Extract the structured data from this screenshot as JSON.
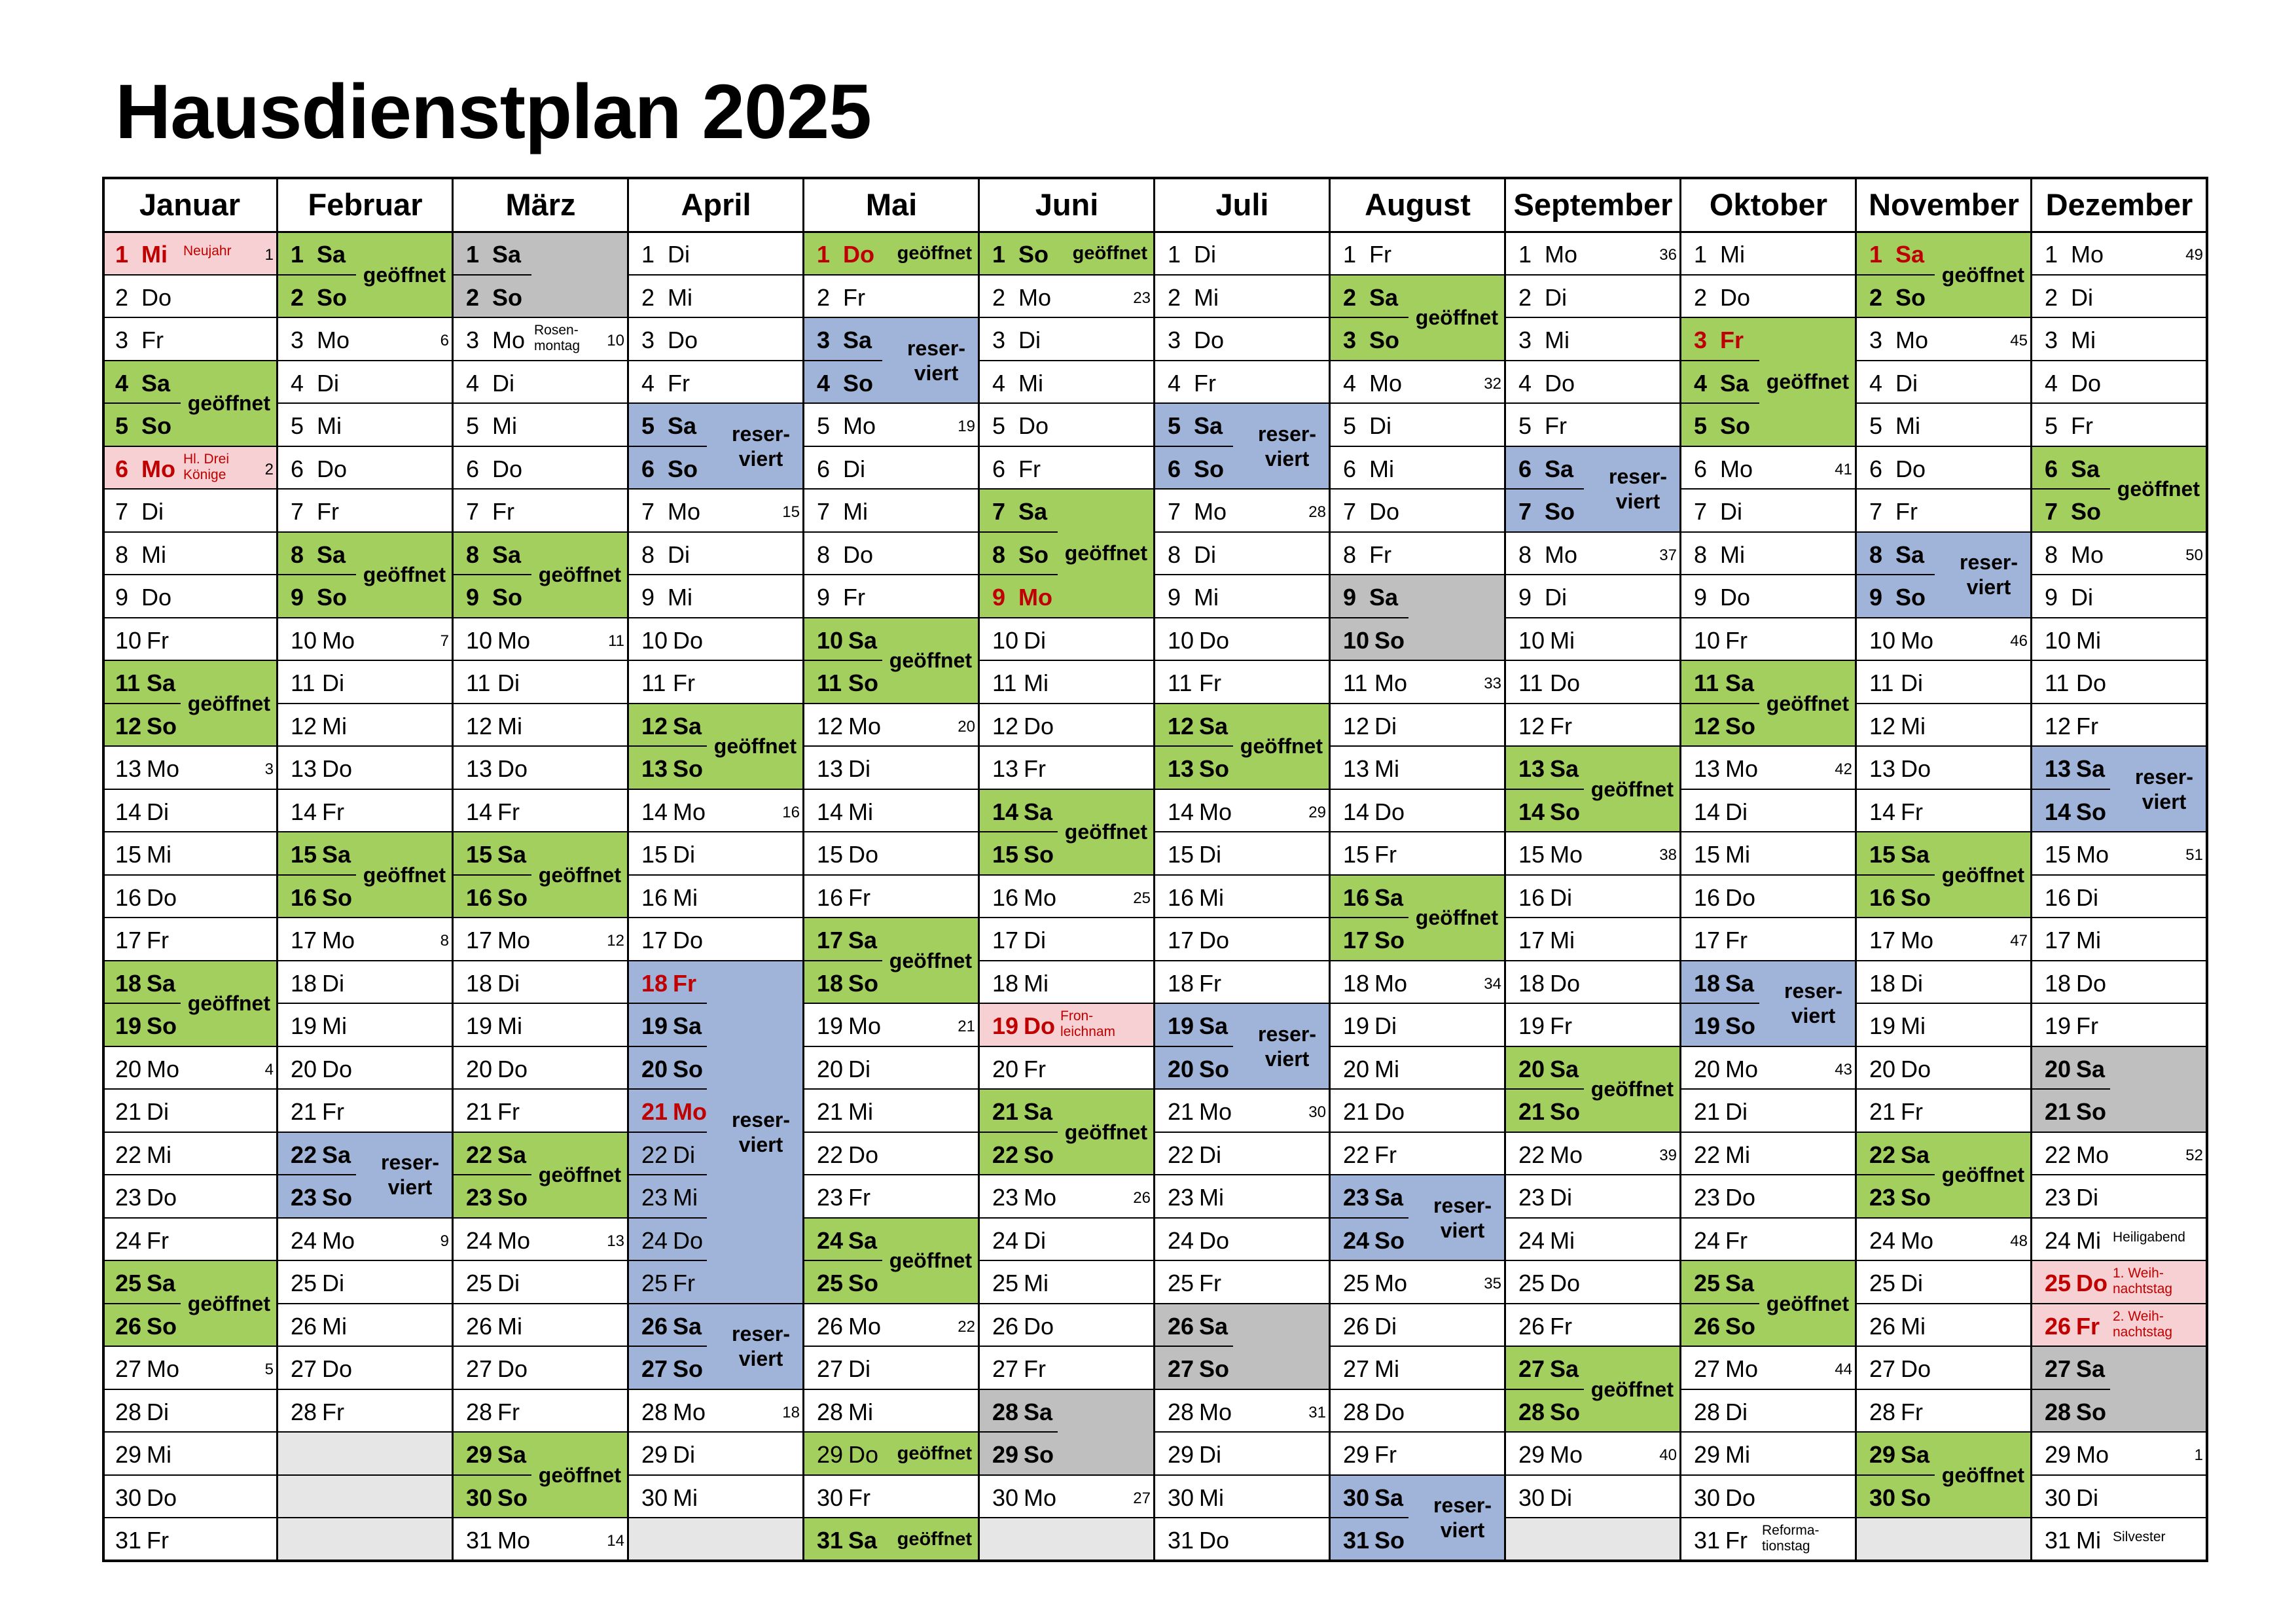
{
  "title": "Hausdienstplan 2025",
  "labels": {
    "open": "geöffnet",
    "reserved_1": "reser-",
    "reserved_2": "viert"
  },
  "colors": {
    "open": "#a3cf5e",
    "reserved": "#9fb4d8",
    "closed": "#bfbfbf",
    "holiday": "#f6d0d2",
    "empty": "#e6e6e6",
    "holiday_text": "#c00000"
  },
  "months": [
    {
      "name": "Januar",
      "first_weekday": 2,
      "days_in_month": 31,
      "weeks": {
        "13": "3",
        "20": "4",
        "27": "5",
        "6": "2",
        "1": "1"
      },
      "blocks": [
        [
          4,
          5,
          "open"
        ],
        [
          11,
          12,
          "open"
        ],
        [
          18,
          19,
          "open"
        ],
        [
          25,
          26,
          "open"
        ]
      ],
      "holidays": [
        {
          "day": 1,
          "note": "Neujahr"
        },
        {
          "day": 6,
          "note": "Hl. Drei\nKönige"
        }
      ]
    },
    {
      "name": "Februar",
      "first_weekday": 5,
      "days_in_month": 28,
      "weeks": {
        "3": "6",
        "10": "7",
        "17": "8",
        "24": "9"
      },
      "blocks": [
        [
          1,
          2,
          "open"
        ],
        [
          8,
          9,
          "open"
        ],
        [
          15,
          16,
          "open"
        ],
        [
          22,
          23,
          "reserved"
        ]
      ],
      "holidays": []
    },
    {
      "name": "März",
      "first_weekday": 5,
      "days_in_month": 31,
      "weeks": {
        "3": "10",
        "10": "11",
        "17": "12",
        "24": "13",
        "31": "14"
      },
      "blocks": [
        [
          1,
          2,
          "closed"
        ],
        [
          8,
          9,
          "open"
        ],
        [
          15,
          16,
          "open"
        ],
        [
          22,
          23,
          "open"
        ],
        [
          29,
          30,
          "open"
        ]
      ],
      "holidays": [],
      "notes": [
        {
          "day": 3,
          "note": "Rosen-\nmontag"
        }
      ]
    },
    {
      "name": "April",
      "first_weekday": 1,
      "days_in_month": 30,
      "weeks": {
        "7": "15",
        "14": "16",
        "28": "18"
      },
      "blocks": [
        [
          5,
          6,
          "reserved"
        ],
        [
          12,
          13,
          "open"
        ],
        [
          18,
          25,
          "reserved"
        ],
        [
          26,
          27,
          "reserved"
        ]
      ],
      "holidays": [
        {
          "day": 18,
          "note": ""
        },
        {
          "day": 21,
          "note": ""
        }
      ]
    },
    {
      "name": "Mai",
      "first_weekday": 3,
      "days_in_month": 31,
      "weeks": {
        "5": "19",
        "12": "20",
        "19": "21",
        "26": "22"
      },
      "blocks": [
        [
          1,
          1,
          "open"
        ],
        [
          3,
          4,
          "reserved"
        ],
        [
          10,
          11,
          "open"
        ],
        [
          17,
          18,
          "open"
        ],
        [
          24,
          25,
          "open"
        ],
        [
          29,
          29,
          "open"
        ],
        [
          31,
          31,
          "open"
        ]
      ],
      "holidays": [
        {
          "day": 1,
          "note": ""
        }
      ]
    },
    {
      "name": "Juni",
      "first_weekday": 6,
      "days_in_month": 30,
      "weeks": {
        "2": "23",
        "16": "25",
        "23": "26",
        "30": "27"
      },
      "blocks": [
        [
          1,
          1,
          "open"
        ],
        [
          7,
          9,
          "open"
        ],
        [
          14,
          15,
          "open"
        ],
        [
          21,
          22,
          "open"
        ],
        [
          28,
          29,
          "closed"
        ]
      ],
      "holidays": [
        {
          "day": 9,
          "note": ""
        },
        {
          "day": 19,
          "note": "Fron-\nleichnam"
        }
      ]
    },
    {
      "name": "Juli",
      "first_weekday": 1,
      "days_in_month": 31,
      "weeks": {
        "7": "28",
        "14": "29",
        "21": "30",
        "28": "31"
      },
      "blocks": [
        [
          5,
          6,
          "reserved"
        ],
        [
          12,
          13,
          "open"
        ],
        [
          19,
          20,
          "reserved"
        ],
        [
          26,
          27,
          "closed"
        ]
      ],
      "holidays": []
    },
    {
      "name": "August",
      "first_weekday": 4,
      "days_in_month": 31,
      "weeks": {
        "4": "32",
        "11": "33",
        "18": "34",
        "25": "35"
      },
      "blocks": [
        [
          2,
          3,
          "open"
        ],
        [
          9,
          10,
          "closed"
        ],
        [
          16,
          17,
          "open"
        ],
        [
          23,
          24,
          "reserved"
        ],
        [
          30,
          31,
          "reserved"
        ]
      ],
      "holidays": []
    },
    {
      "name": "September",
      "first_weekday": 0,
      "days_in_month": 30,
      "weeks": {
        "1": "36",
        "8": "37",
        "15": "38",
        "29": "40",
        "22": "39"
      },
      "blocks": [
        [
          6,
          7,
          "reserved"
        ],
        [
          13,
          14,
          "open"
        ],
        [
          20,
          21,
          "open"
        ],
        [
          27,
          28,
          "open"
        ]
      ],
      "holidays": []
    },
    {
      "name": "Oktober",
      "first_weekday": 2,
      "days_in_month": 31,
      "weeks": {
        "6": "41",
        "13": "42",
        "20": "43",
        "27": "44"
      },
      "blocks": [
        [
          3,
          5,
          "open"
        ],
        [
          11,
          12,
          "open"
        ],
        [
          18,
          19,
          "reserved"
        ],
        [
          25,
          26,
          "open"
        ]
      ],
      "holidays": [
        {
          "day": 3,
          "note": ""
        }
      ],
      "notes": [
        {
          "day": 31,
          "note": "Reforma-\ntionstag"
        }
      ]
    },
    {
      "name": "November",
      "first_weekday": 5,
      "days_in_month": 30,
      "weeks": {
        "3": "45",
        "10": "46",
        "17": "47",
        "24": "48"
      },
      "blocks": [
        [
          1,
          2,
          "open"
        ],
        [
          8,
          9,
          "reserved"
        ],
        [
          15,
          16,
          "open"
        ],
        [
          22,
          23,
          "open"
        ],
        [
          29,
          30,
          "open"
        ]
      ],
      "holidays": [
        {
          "day": 1,
          "note": ""
        }
      ]
    },
    {
      "name": "Dezember",
      "first_weekday": 0,
      "days_in_month": 31,
      "weeks": {
        "1": "49",
        "8": "50",
        "15": "51",
        "22": "52",
        "29": "1"
      },
      "blocks": [
        [
          6,
          7,
          "open"
        ],
        [
          13,
          14,
          "reserved"
        ],
        [
          20,
          21,
          "closed"
        ],
        [
          27,
          28,
          "closed"
        ]
      ],
      "holidays": [
        {
          "day": 25,
          "note": "1. Weih-\nnachtstag"
        },
        {
          "day": 26,
          "note": "2. Weih-\nnachtstag"
        }
      ],
      "notes": [
        {
          "day": 24,
          "note": "Heiligabend"
        },
        {
          "day": 31,
          "note": "Silvester"
        }
      ]
    }
  ],
  "weekday_names": [
    "Mo",
    "Di",
    "Mi",
    "Do",
    "Fr",
    "Sa",
    "So"
  ]
}
